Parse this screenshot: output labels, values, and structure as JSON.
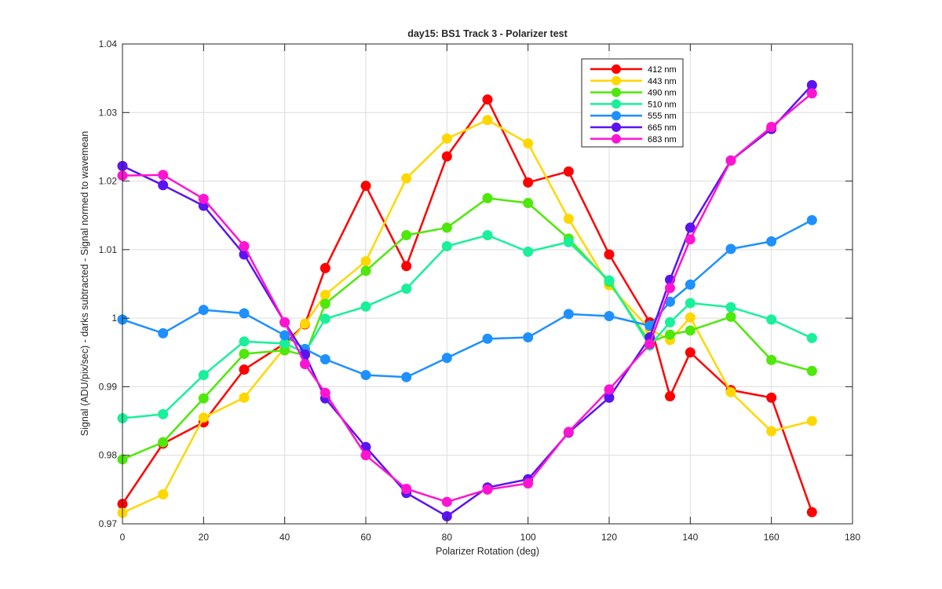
{
  "chart_data": {
    "type": "line",
    "title": "day15: BS1  Track 3 - Polarizer test",
    "xlabel": "Polarizer Rotation (deg)",
    "ylabel": "Signal (ADU/pix/sec) - darks subtracted - Signal normed to wavemean",
    "xlim": [
      0,
      180
    ],
    "ylim": [
      0.97,
      1.04
    ],
    "xticks": [
      0,
      20,
      40,
      60,
      80,
      100,
      120,
      140,
      160,
      180
    ],
    "xtick_labels": [
      "0",
      "20",
      "40",
      "60",
      "80",
      "100",
      "120",
      "140",
      "160",
      "180"
    ],
    "yticks": [
      0.97,
      0.98,
      0.99,
      1.0,
      1.01,
      1.02,
      1.03,
      1.04
    ],
    "ytick_labels": [
      "0.97",
      "0.98",
      "0.99",
      "1",
      "1.01",
      "1.02",
      "1.03",
      "1.04"
    ],
    "grid": true,
    "legend_position": "top-right",
    "x": [
      0,
      10,
      20,
      30,
      40,
      45,
      50,
      60,
      70,
      80,
      90,
      100,
      110,
      120,
      130,
      135,
      140,
      150,
      160,
      170
    ],
    "series": [
      {
        "name": "412 nm",
        "color": "#ff0000",
        "values": [
          0.9729,
          0.9817,
          0.9848,
          0.9925,
          0.9963,
          0.9991,
          1.0073,
          1.0193,
          1.0076,
          1.0236,
          1.0319,
          1.0198,
          1.0214,
          1.0093,
          0.9994,
          0.9886,
          0.995,
          0.9895,
          0.9884,
          0.9717
        ]
      },
      {
        "name": "443 nm",
        "color": "#ffd700",
        "values": [
          0.9716,
          0.9743,
          0.9855,
          0.9884,
          0.9957,
          0.9992,
          1.0034,
          1.0083,
          1.0204,
          1.0262,
          1.0289,
          1.0255,
          1.0145,
          1.0048,
          0.9984,
          0.9968,
          1.0001,
          0.9892,
          0.9835,
          0.985
        ]
      },
      {
        "name": "490 nm",
        "color": "#4ee80a",
        "values": [
          0.9794,
          0.9819,
          0.9883,
          0.9948,
          0.9953,
          0.9946,
          1.0021,
          1.0069,
          1.0121,
          1.0132,
          1.0175,
          1.0168,
          1.0116,
          1.0053,
          0.9965,
          0.9976,
          0.9982,
          1.0002,
          0.9939,
          0.9923
        ]
      },
      {
        "name": "510 nm",
        "color": "#18f09a",
        "values": [
          0.9854,
          0.986,
          0.9917,
          0.9966,
          0.9963,
          0.995,
          0.9999,
          1.0017,
          1.0043,
          1.0105,
          1.0121,
          1.0097,
          1.0111,
          1.0055,
          0.996,
          0.9994,
          1.0022,
          1.0016,
          0.9998,
          0.9971
        ]
      },
      {
        "name": "555 nm",
        "color": "#1e90ff",
        "values": [
          0.9998,
          0.9978,
          1.0012,
          1.0007,
          0.9975,
          0.9955,
          0.994,
          0.9917,
          0.9914,
          0.9942,
          0.997,
          0.9972,
          1.0006,
          1.0003,
          0.9989,
          1.0024,
          1.0049,
          1.0101,
          1.0112,
          1.0143
        ]
      },
      {
        "name": "665 nm",
        "color": "#5a14f0",
        "values": [
          1.0222,
          1.0194,
          1.0164,
          1.0093,
          0.9994,
          0.9947,
          0.9883,
          0.9812,
          0.9745,
          0.9711,
          0.9753,
          0.9765,
          0.9833,
          0.9884,
          0.9972,
          1.0056,
          1.0132,
          1.023,
          1.0276,
          1.034
        ]
      },
      {
        "name": "683 nm",
        "color": "#ff14d2",
        "values": [
          1.0208,
          1.0209,
          1.0174,
          1.0105,
          0.9994,
          0.9933,
          0.9891,
          0.98,
          0.9751,
          0.9732,
          0.975,
          0.9759,
          0.9834,
          0.9896,
          0.9962,
          1.0044,
          1.0115,
          1.023,
          1.0279,
          1.0328
        ]
      }
    ]
  }
}
